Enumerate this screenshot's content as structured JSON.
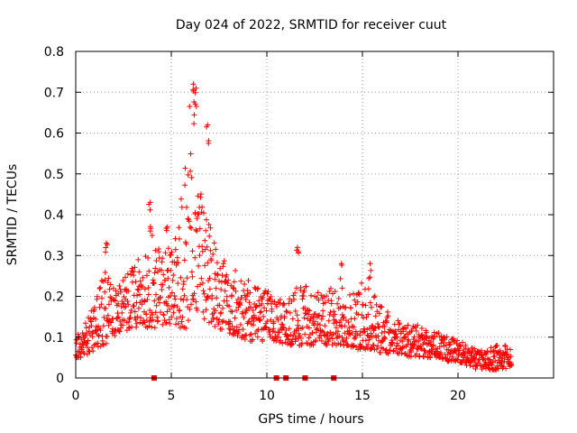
{
  "chart_data": {
    "type": "scatter",
    "title": "Day 024 of 2022, SRMTID for receiver cuut",
    "xlabel": "GPS time / hours",
    "ylabel": "SRMTID / TECUs",
    "xlim": [
      0,
      25
    ],
    "ylim": [
      0,
      0.8
    ],
    "x_ticks": [
      0,
      5,
      10,
      15,
      20
    ],
    "y_ticks": [
      0,
      0.1,
      0.2,
      0.3,
      0.4,
      0.5,
      0.6,
      0.7,
      0.8
    ],
    "x_tick_labels": [
      "0",
      "5",
      "10",
      "15",
      "20"
    ],
    "y_tick_labels": [
      "0",
      "0.1",
      "0.2",
      "0.3",
      "0.4",
      "0.5",
      "0.6",
      "0.7",
      "0.8"
    ],
    "marker": "plus",
    "color": "#ff0000",
    "grid": true,
    "baseline_markers_x": [
      4.1,
      10.5,
      11.0,
      12.0,
      13.5
    ],
    "envelope": {
      "description": "approximate band of the scatter cloud (data units), sampled at x",
      "x": [
        0.0,
        0.5,
        1.0,
        1.5,
        2.0,
        2.5,
        3.0,
        3.5,
        4.0,
        4.5,
        5.0,
        5.5,
        5.8,
        6.0,
        6.2,
        6.5,
        7.0,
        7.5,
        8.0,
        8.5,
        9.0,
        9.5,
        10.0,
        10.5,
        11.0,
        11.5,
        12.0,
        12.5,
        13.0,
        13.5,
        14.0,
        14.5,
        15.0,
        15.5,
        16.0,
        16.5,
        17.0,
        17.5,
        18.0,
        18.5,
        19.0,
        19.5,
        20.0,
        20.5,
        21.0,
        21.5,
        22.0,
        22.5,
        22.8
      ],
      "low": [
        0.05,
        0.05,
        0.07,
        0.08,
        0.1,
        0.11,
        0.12,
        0.12,
        0.12,
        0.13,
        0.13,
        0.12,
        0.12,
        0.14,
        0.16,
        0.14,
        0.13,
        0.12,
        0.11,
        0.1,
        0.09,
        0.09,
        0.09,
        0.09,
        0.08,
        0.08,
        0.08,
        0.08,
        0.08,
        0.08,
        0.08,
        0.07,
        0.07,
        0.07,
        0.06,
        0.06,
        0.06,
        0.05,
        0.05,
        0.05,
        0.05,
        0.04,
        0.04,
        0.03,
        0.02,
        0.02,
        0.02,
        0.02,
        0.03
      ],
      "high": [
        0.1,
        0.14,
        0.18,
        0.27,
        0.22,
        0.24,
        0.28,
        0.3,
        0.4,
        0.3,
        0.33,
        0.45,
        0.6,
        0.7,
        0.65,
        0.5,
        0.38,
        0.3,
        0.28,
        0.26,
        0.25,
        0.22,
        0.22,
        0.2,
        0.18,
        0.22,
        0.24,
        0.22,
        0.22,
        0.22,
        0.2,
        0.21,
        0.24,
        0.22,
        0.18,
        0.16,
        0.14,
        0.13,
        0.13,
        0.12,
        0.11,
        0.1,
        0.1,
        0.08,
        0.07,
        0.07,
        0.08,
        0.08,
        0.07
      ]
    },
    "peaks": [
      {
        "x": 1.6,
        "y": 0.33
      },
      {
        "x": 3.9,
        "y": 0.43
      },
      {
        "x": 4.8,
        "y": 0.37
      },
      {
        "x": 6.15,
        "y": 0.72
      },
      {
        "x": 6.3,
        "y": 0.71
      },
      {
        "x": 6.9,
        "y": 0.62
      },
      {
        "x": 11.6,
        "y": 0.32
      },
      {
        "x": 13.9,
        "y": 0.28
      },
      {
        "x": 15.4,
        "y": 0.28
      }
    ]
  }
}
